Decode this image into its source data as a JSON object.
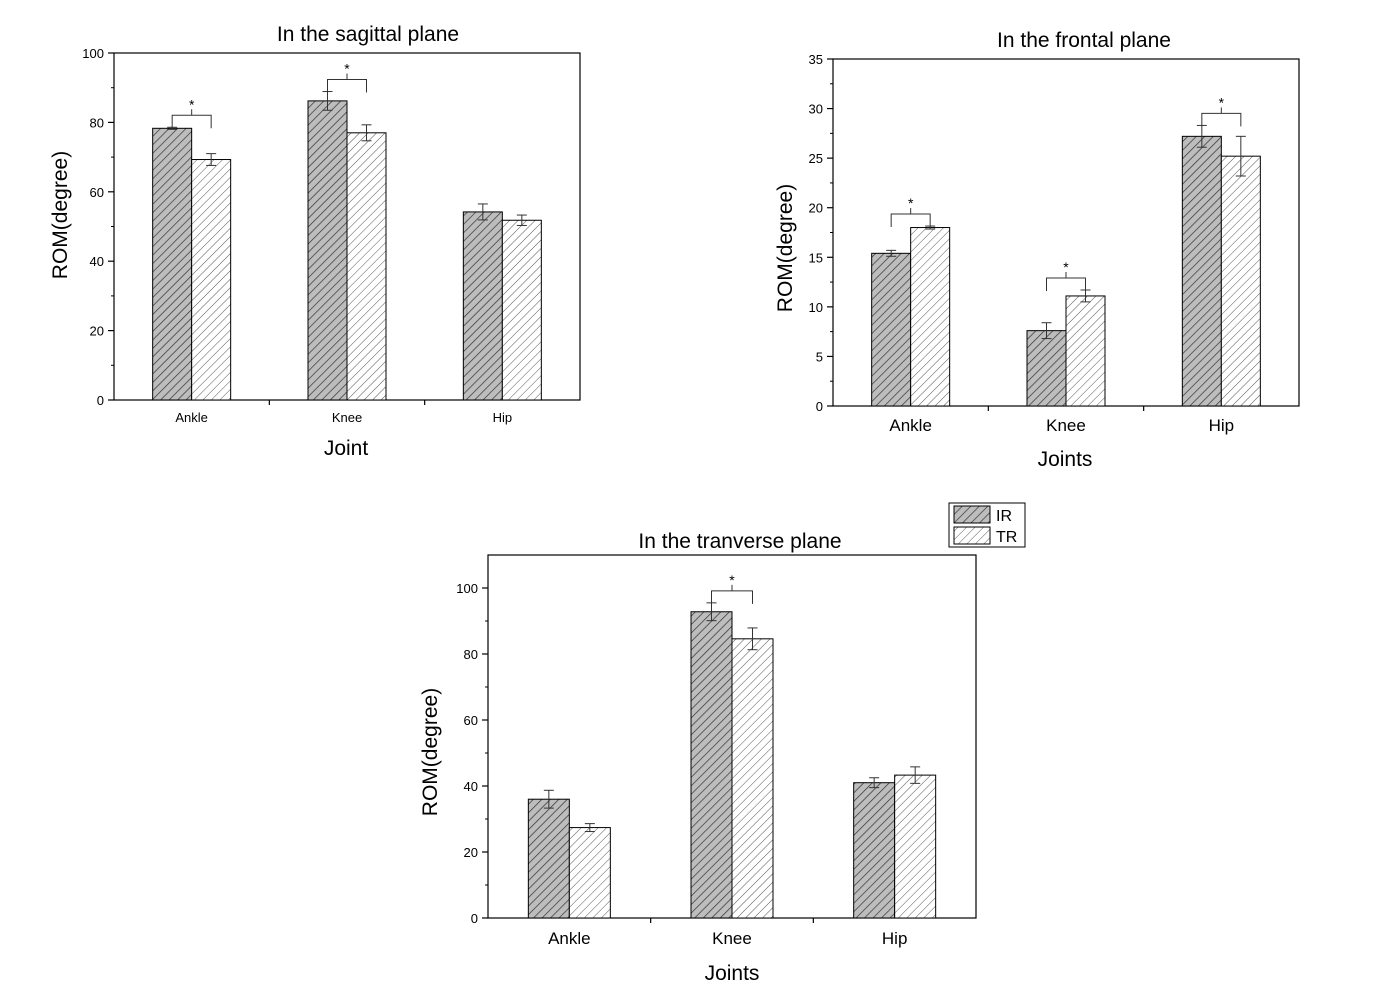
{
  "legend": {
    "items": [
      {
        "label": "IR",
        "pattern": "dark"
      },
      {
        "label": "TR",
        "pattern": "light"
      }
    ]
  },
  "chart_data": [
    {
      "type": "bar",
      "title": "In the sagittal plane",
      "xlabel": "Joint",
      "ylabel": "ROM(degree)",
      "categories": [
        "Ankle",
        "Knee",
        "Hip"
      ],
      "ylim": [
        0,
        100
      ],
      "yticks": [
        0,
        20,
        40,
        60,
        80,
        100
      ],
      "series": [
        {
          "name": "IR",
          "values": [
            78.3,
            86.2,
            54.2
          ],
          "errors": [
            0.3,
            2.7,
            2.3
          ]
        },
        {
          "name": "TR",
          "values": [
            69.3,
            77.0,
            51.8
          ],
          "errors": [
            1.7,
            2.3,
            1.5
          ]
        }
      ],
      "significance": [
        {
          "category": "Ankle",
          "label": "*"
        },
        {
          "category": "Knee",
          "label": "*"
        }
      ]
    },
    {
      "type": "bar",
      "title": "In the frontal plane",
      "xlabel": "Joints",
      "ylabel": "ROM(degree)",
      "categories": [
        "Ankle",
        "Knee",
        "Hip"
      ],
      "ylim": [
        0,
        35
      ],
      "yticks": [
        0,
        5,
        10,
        15,
        20,
        25,
        30,
        35
      ],
      "series": [
        {
          "name": "IR",
          "values": [
            15.4,
            7.6,
            27.2
          ],
          "errors": [
            0.3,
            0.8,
            1.1
          ]
        },
        {
          "name": "TR",
          "values": [
            18.0,
            11.1,
            25.2
          ],
          "errors": [
            0.15,
            0.6,
            2.0
          ]
        }
      ],
      "significance": [
        {
          "category": "Ankle",
          "label": "*"
        },
        {
          "category": "Knee",
          "label": "*"
        },
        {
          "category": "Hip",
          "label": "*"
        }
      ]
    },
    {
      "type": "bar",
      "title": "In the tranverse plane",
      "xlabel": "Joints",
      "ylabel": "ROM(degree)",
      "categories": [
        "Ankle",
        "Knee",
        "Hip"
      ],
      "ylim": [
        0,
        110
      ],
      "yticks": [
        0,
        20,
        40,
        60,
        80,
        100
      ],
      "series": [
        {
          "name": "IR",
          "values": [
            36.0,
            92.8,
            41.0
          ],
          "errors": [
            2.7,
            2.7,
            1.5
          ]
        },
        {
          "name": "TR",
          "values": [
            27.4,
            84.6,
            43.3
          ],
          "errors": [
            1.2,
            3.3,
            2.5
          ]
        }
      ],
      "significance": [
        {
          "category": "Knee",
          "label": "*"
        }
      ]
    }
  ]
}
